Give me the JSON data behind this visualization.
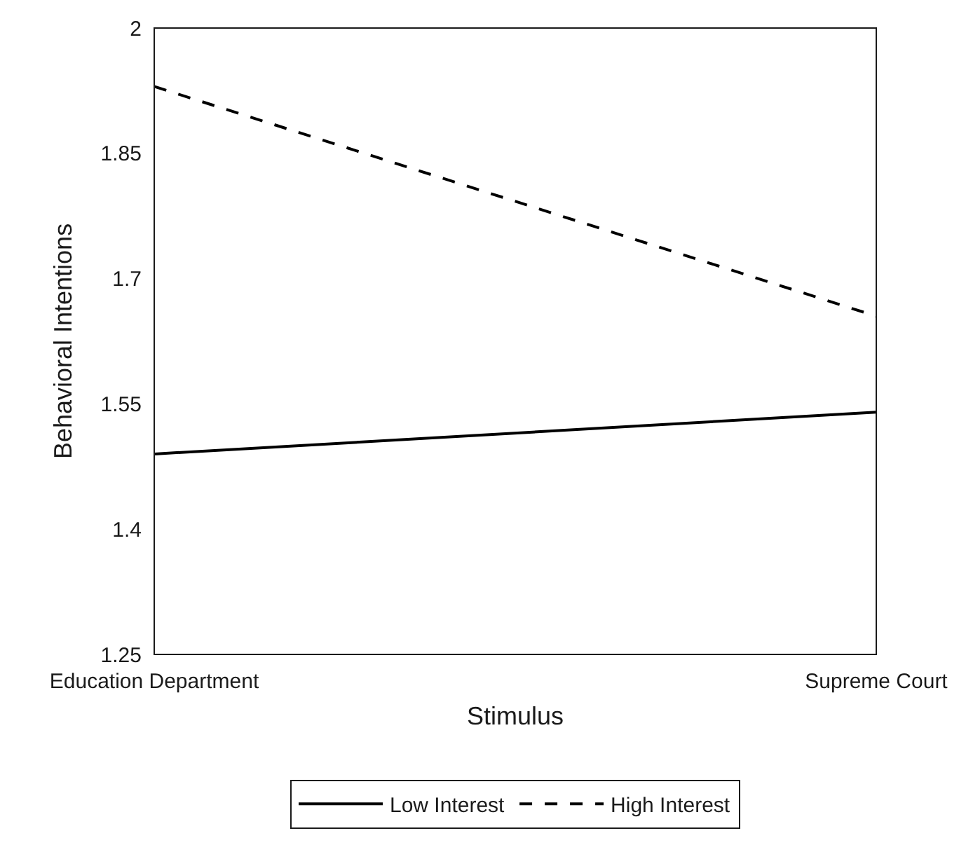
{
  "chart_data": {
    "type": "line",
    "xlabel": "Stimulus",
    "ylabel": "Behavioral Intentions",
    "categories": [
      "Education Department",
      "Supreme Court"
    ],
    "series": [
      {
        "name": "Low Interest",
        "color": "#000000",
        "line_style": "solid",
        "values": [
          1.49,
          1.54
        ]
      },
      {
        "name": "High Interest",
        "color": "#000000",
        "line_style": "dashed",
        "values": [
          1.93,
          1.655
        ]
      }
    ],
    "ylim": [
      1.25,
      2
    ],
    "yticks": [
      1.25,
      1.4,
      1.55,
      1.7,
      1.85,
      2
    ],
    "grid": false,
    "legend": "bottom",
    "marker": "none"
  }
}
